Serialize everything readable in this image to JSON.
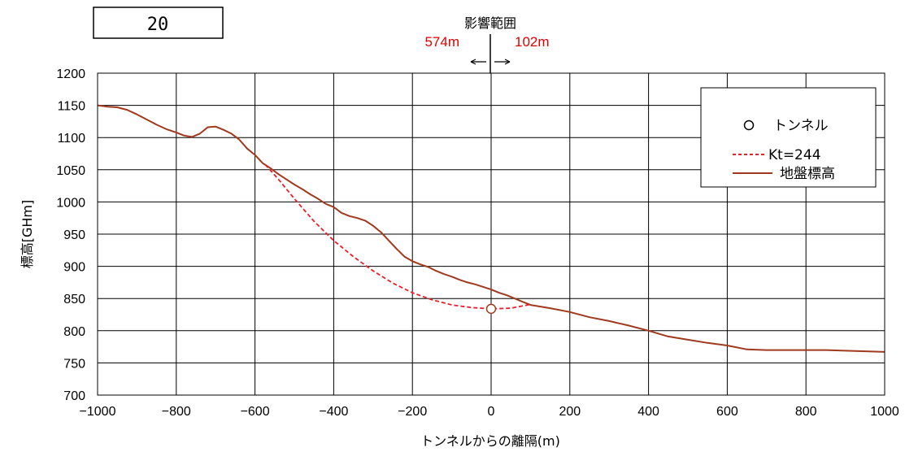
{
  "id_box": {
    "label": "20"
  },
  "influence": {
    "title": "影響範囲",
    "left_label": "574m",
    "right_label": "102m",
    "left_value": -574,
    "right_value": 102,
    "arrows": "←│→"
  },
  "chart_data": {
    "type": "line",
    "xlabel": "トンネルからの離隔(m)",
    "ylabel": "標高[GHm]",
    "xlim": [
      -1000,
      1000
    ],
    "ylim": [
      700,
      1200
    ],
    "xticks": [
      -1000,
      -800,
      -600,
      -400,
      -200,
      0,
      200,
      400,
      600,
      800,
      1000
    ],
    "xtick_labels": [
      "−1000",
      "−800",
      "−600",
      "−400",
      "−200",
      "0",
      "200",
      "400",
      "600",
      "800",
      "1000"
    ],
    "yticks": [
      700,
      750,
      800,
      850,
      900,
      950,
      1000,
      1050,
      1100,
      1150,
      1200
    ],
    "yticks_labels": [
      "700",
      "750",
      "800",
      "850",
      "900",
      "950",
      "1000",
      "1050",
      "1100",
      "1150",
      "1200"
    ],
    "grid": true,
    "legend_position": "top-right",
    "colors": {
      "ground": "#a0391e",
      "kt": "#e8202a",
      "tunnel_marker": "#a0391e"
    },
    "series": [
      {
        "name": "トンネル",
        "type": "scatter",
        "points": [
          {
            "x": 0,
            "y": 834
          }
        ]
      },
      {
        "name": "Kt=244",
        "type": "line",
        "style": "dashed",
        "points": [
          [
            -574,
            1058
          ],
          [
            -540,
            1035
          ],
          [
            -500,
            1005
          ],
          [
            -450,
            970
          ],
          [
            -400,
            940
          ],
          [
            -350,
            915
          ],
          [
            -300,
            893
          ],
          [
            -250,
            874
          ],
          [
            -200,
            859
          ],
          [
            -150,
            848
          ],
          [
            -100,
            840
          ],
          [
            -50,
            836
          ],
          [
            0,
            834
          ],
          [
            50,
            835
          ],
          [
            102,
            841
          ]
        ]
      },
      {
        "name": "地盤標高",
        "type": "line",
        "style": "solid",
        "points": [
          [
            -1000,
            1150
          ],
          [
            -975,
            1148
          ],
          [
            -950,
            1147
          ],
          [
            -925,
            1143
          ],
          [
            -900,
            1136
          ],
          [
            -875,
            1128
          ],
          [
            -850,
            1120
          ],
          [
            -825,
            1113
          ],
          [
            -800,
            1108
          ],
          [
            -780,
            1103
          ],
          [
            -760,
            1101
          ],
          [
            -740,
            1106
          ],
          [
            -720,
            1116
          ],
          [
            -700,
            1117
          ],
          [
            -680,
            1112
          ],
          [
            -660,
            1106
          ],
          [
            -640,
            1097
          ],
          [
            -620,
            1083
          ],
          [
            -600,
            1073
          ],
          [
            -580,
            1060
          ],
          [
            -560,
            1052
          ],
          [
            -540,
            1043
          ],
          [
            -520,
            1035
          ],
          [
            -500,
            1027
          ],
          [
            -480,
            1020
          ],
          [
            -460,
            1012
          ],
          [
            -440,
            1005
          ],
          [
            -420,
            997
          ],
          [
            -400,
            992
          ],
          [
            -380,
            983
          ],
          [
            -360,
            978
          ],
          [
            -340,
            975
          ],
          [
            -320,
            971
          ],
          [
            -300,
            963
          ],
          [
            -280,
            953
          ],
          [
            -260,
            940
          ],
          [
            -240,
            927
          ],
          [
            -220,
            915
          ],
          [
            -200,
            908
          ],
          [
            -180,
            903
          ],
          [
            -160,
            899
          ],
          [
            -140,
            893
          ],
          [
            -120,
            888
          ],
          [
            -100,
            884
          ],
          [
            -80,
            879
          ],
          [
            -60,
            875
          ],
          [
            -40,
            872
          ],
          [
            -20,
            868
          ],
          [
            0,
            864
          ],
          [
            20,
            859
          ],
          [
            40,
            855
          ],
          [
            60,
            850
          ],
          [
            80,
            845
          ],
          [
            100,
            840
          ],
          [
            150,
            835
          ],
          [
            200,
            829
          ],
          [
            250,
            821
          ],
          [
            300,
            815
          ],
          [
            350,
            808
          ],
          [
            400,
            800
          ],
          [
            450,
            791
          ],
          [
            500,
            786
          ],
          [
            550,
            781
          ],
          [
            600,
            777
          ],
          [
            650,
            771
          ],
          [
            700,
            770
          ],
          [
            750,
            770
          ],
          [
            800,
            770
          ],
          [
            850,
            770
          ],
          [
            900,
            769
          ],
          [
            950,
            768
          ],
          [
            1000,
            767
          ]
        ]
      }
    ]
  }
}
